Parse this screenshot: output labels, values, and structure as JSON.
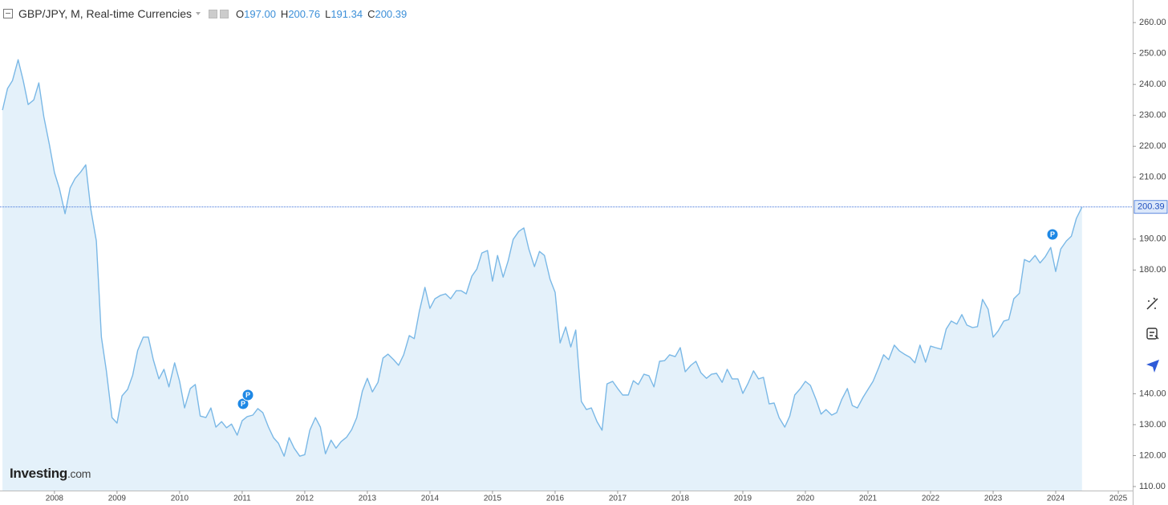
{
  "chart_data": {
    "type": "area",
    "title": "GBP/JPY, M, Real-time Currencies",
    "ohlc": [
      {
        "key": "O",
        "value": 197,
        "label": "197.00"
      },
      {
        "key": "H",
        "value": 200.76,
        "label": "200.76"
      },
      {
        "key": "L",
        "value": 191.34,
        "label": "191.34"
      },
      {
        "key": "C",
        "value": 200.39,
        "label": "200.39"
      }
    ],
    "last_price": 200.39,
    "logo": {
      "brand": "Investing",
      "suffix": ".com"
    },
    "event_markers": [
      "P",
      "P",
      "P"
    ],
    "line_color": "#7ab8e6",
    "fill_color": "#e4f1fa",
    "price_line_color": "#3a6fd8",
    "x": [
      2007.17,
      2007.25,
      2007.33,
      2007.42,
      2007.5,
      2007.58,
      2007.67,
      2007.75,
      2007.83,
      2007.92,
      2008,
      2008.08,
      2008.17,
      2008.25,
      2008.33,
      2008.42,
      2008.5,
      2008.58,
      2008.67,
      2008.75,
      2008.83,
      2008.92,
      2009,
      2009.08,
      2009.17,
      2009.25,
      2009.33,
      2009.42,
      2009.5,
      2009.58,
      2009.67,
      2009.75,
      2009.83,
      2009.92,
      2010,
      2010.08,
      2010.17,
      2010.25,
      2010.33,
      2010.42,
      2010.5,
      2010.58,
      2010.67,
      2010.75,
      2010.83,
      2010.92,
      2011,
      2011.08,
      2011.17,
      2011.25,
      2011.33,
      2011.42,
      2011.5,
      2011.58,
      2011.67,
      2011.75,
      2011.83,
      2011.92,
      2012,
      2012.08,
      2012.17,
      2012.25,
      2012.33,
      2012.42,
      2012.5,
      2012.58,
      2012.67,
      2012.75,
      2012.83,
      2012.92,
      2013,
      2013.08,
      2013.17,
      2013.25,
      2013.33,
      2013.42,
      2013.5,
      2013.58,
      2013.67,
      2013.75,
      2013.83,
      2013.92,
      2014,
      2014.08,
      2014.17,
      2014.25,
      2014.33,
      2014.42,
      2014.5,
      2014.58,
      2014.67,
      2014.75,
      2014.83,
      2014.92,
      2015,
      2015.08,
      2015.17,
      2015.25,
      2015.33,
      2015.42,
      2015.5,
      2015.58,
      2015.67,
      2015.75,
      2015.83,
      2015.92,
      2016,
      2016.08,
      2016.17,
      2016.25,
      2016.33,
      2016.42,
      2016.5,
      2016.58,
      2016.67,
      2016.75,
      2016.83,
      2016.92,
      2017,
      2017.08,
      2017.17,
      2017.25,
      2017.33,
      2017.42,
      2017.5,
      2017.58,
      2017.67,
      2017.75,
      2017.83,
      2017.92,
      2018,
      2018.08,
      2018.17,
      2018.25,
      2018.33,
      2018.42,
      2018.5,
      2018.58,
      2018.67,
      2018.75,
      2018.83,
      2018.92,
      2019,
      2019.08,
      2019.17,
      2019.25,
      2019.33,
      2019.42,
      2019.5,
      2019.58,
      2019.67,
      2019.75,
      2019.83,
      2019.92,
      2020,
      2020.08,
      2020.17,
      2020.25,
      2020.33,
      2020.42,
      2020.5,
      2020.58,
      2020.67,
      2020.75,
      2020.83,
      2020.92,
      2021,
      2021.08,
      2021.17,
      2021.25,
      2021.33,
      2021.42,
      2021.5,
      2021.58,
      2021.67,
      2021.75,
      2021.83,
      2021.92,
      2022,
      2022.08,
      2022.17,
      2022.25,
      2022.33,
      2022.42,
      2022.5,
      2022.58,
      2022.67,
      2022.75,
      2022.83,
      2022.92,
      2023,
      2023.08,
      2023.17,
      2023.25,
      2023.33,
      2023.42,
      2023.5,
      2023.58,
      2023.67,
      2023.75,
      2023.83,
      2023.92,
      2024,
      2024.08,
      2024.17,
      2024.25,
      2024.33,
      2024.42
    ],
    "values": [
      231.7,
      238.7,
      241.3,
      248,
      241.3,
      233.5,
      235,
      240.5,
      229.6,
      220.5,
      211.5,
      206.3,
      198.2,
      206.5,
      209.6,
      211.7,
      214,
      199.8,
      189.4,
      158.3,
      147.4,
      132.3,
      130.5,
      139.3,
      141.4,
      146,
      154,
      158.3,
      158.3,
      151,
      144.8,
      147.9,
      142.2,
      150,
      144,
      135.4,
      141.7,
      143,
      132.8,
      132.3,
      135.4,
      129.2,
      131,
      129,
      130.2,
      126.6,
      131.3,
      132.6,
      133.1,
      135.2,
      133.9,
      129.2,
      125.8,
      124,
      119.8,
      125.8,
      122.4,
      119.8,
      120.3,
      128.2,
      132.3,
      129.2,
      120.6,
      125,
      122.4,
      124.5,
      126,
      128.4,
      132.3,
      140.8,
      145,
      140.6,
      143.7,
      151.5,
      152.8,
      151,
      149.2,
      152.6,
      158.8,
      157.8,
      166.6,
      174.4,
      167.6,
      170.7,
      171.8,
      172.3,
      170.7,
      173.3,
      173.3,
      172.3,
      178,
      180.3,
      185.5,
      186.3,
      176.4,
      184.7,
      177.7,
      182.9,
      189.9,
      192.5,
      193.6,
      186.8,
      181.1,
      186,
      184.7,
      177,
      172.8,
      156.4,
      161.6,
      155.1,
      160.6,
      137.5,
      134.9,
      135.4,
      131,
      128.2,
      143.2,
      144,
      141.7,
      139.6,
      139.6,
      144.2,
      143,
      146.3,
      145.8,
      142.2,
      150.5,
      150.7,
      152.6,
      152,
      154.9,
      147.1,
      149.2,
      150.5,
      146.8,
      145,
      146.3,
      146.6,
      143.7,
      147.9,
      144.8,
      144.8,
      140.1,
      143.2,
      147.4,
      144.8,
      145.3,
      136.7,
      137,
      132.3,
      129.2,
      132.8,
      139.6,
      141.7,
      144,
      142.7,
      138.1,
      133.4,
      134.9,
      133.1,
      133.9,
      138.1,
      141.7,
      136.2,
      135.4,
      138.8,
      141.4,
      144,
      148.4,
      152.6,
      151,
      155.7,
      153.9,
      152.8,
      151.8,
      150,
      155.7,
      150.2,
      155.4,
      154.9,
      154.4,
      160.9,
      163.5,
      162.5,
      165.6,
      162.2,
      161.4,
      161.7,
      170.5,
      167.3,
      158.3,
      160.3,
      163.5,
      164,
      170.7,
      172.5,
      183.4,
      182.6,
      184.7,
      182.3,
      184.2,
      187.3,
      179.5,
      186.8,
      189.4,
      190.9,
      196.7,
      200.39
    ],
    "xlim": [
      2007.13,
      2025.23
    ],
    "xticks": [
      2008,
      2009,
      2010,
      2011,
      2012,
      2013,
      2014,
      2015,
      2016,
      2017,
      2018,
      2019,
      2020,
      2021,
      2022,
      2023,
      2024,
      2025
    ],
    "ylim": [
      108.7,
      267.3
    ],
    "yticks": [
      {
        "value": 110,
        "label": "110.00"
      },
      {
        "value": 120,
        "label": "120.00"
      },
      {
        "value": 130,
        "label": "130.00"
      },
      {
        "value": 140,
        "label": "140.00"
      },
      {
        "value": 180,
        "label": "180.00"
      },
      {
        "value": 190,
        "label": "190.00"
      },
      {
        "value": 210,
        "label": "210.00"
      },
      {
        "value": 220,
        "label": "220.00"
      },
      {
        "value": 230,
        "label": "230.00"
      },
      {
        "value": 240,
        "label": "240.00"
      },
      {
        "value": 250,
        "label": "250.00"
      },
      {
        "value": 260,
        "label": "260.00"
      }
    ]
  }
}
